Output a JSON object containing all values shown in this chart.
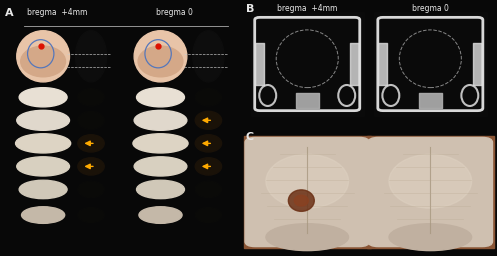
{
  "bg_color": "#080808",
  "fig_width": 4.97,
  "fig_height": 2.56,
  "dpi": 100,
  "text_color": "#e8e8e8",
  "label_fontsize": 8,
  "title_fontsize": 5.5,
  "panel_A": {
    "label": "A",
    "col1_title": "bregma  +4mm",
    "col2_title": "bregma 0"
  },
  "panel_B": {
    "label": "B",
    "col1_title": "bregma  +4mm",
    "col2_title": "bregma 0"
  },
  "panel_C": {
    "label": "C"
  }
}
